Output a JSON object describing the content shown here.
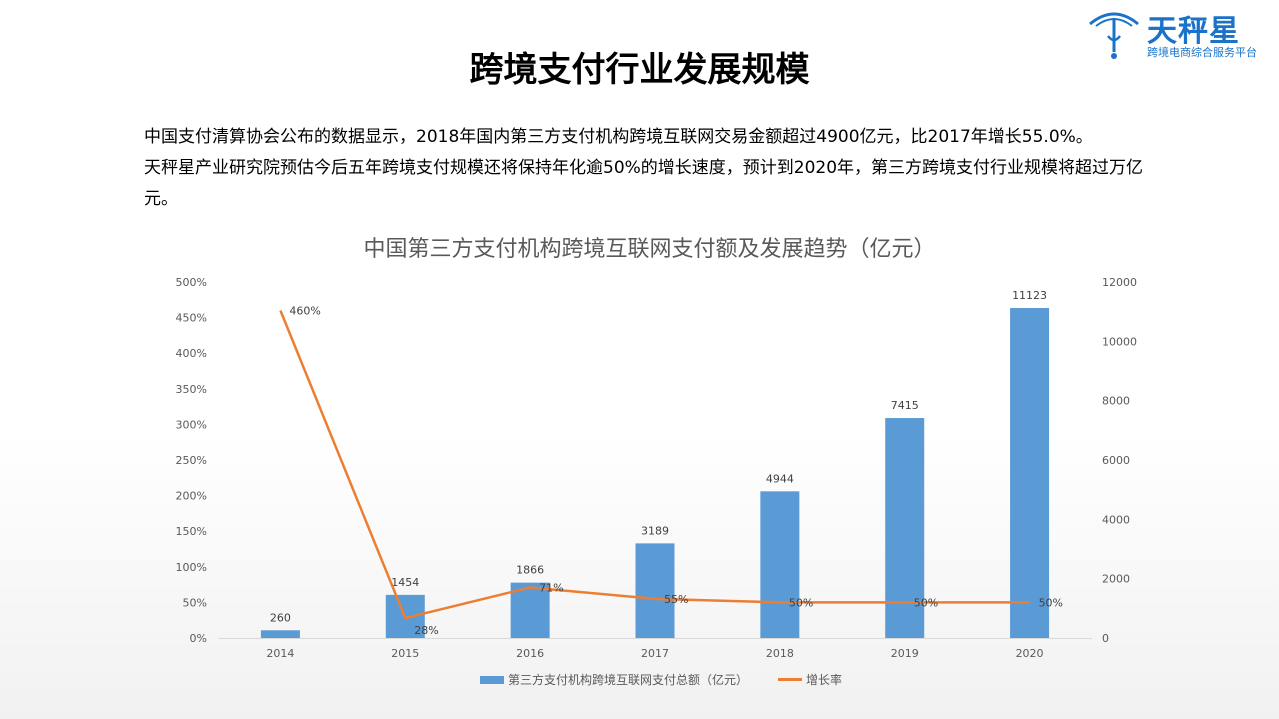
{
  "brand": {
    "name": "天秤星",
    "tagline": "跨境电商综合服务平台",
    "color": "#1a73c8"
  },
  "page_title": "跨境支付行业发展规模",
  "intro": [
    "中国支付清算协会公布的数据显示，2018年国内第三方支付机构跨境互联网交易金额超过4900亿元，比2017年增长55.0%。",
    "天秤星产业研究院预估今后五年跨境支付规模还将保持年化逾50%的增长速度，预计到2020年，第三方跨境支付行业规模将超过万亿元。"
  ],
  "chart_data": {
    "type": "bar",
    "title": "中国第三方支付机构跨境互联网支付额及发展趋势（亿元）",
    "categories": [
      "2014",
      "2015",
      "2016",
      "2017",
      "2018",
      "2019",
      "2020"
    ],
    "series": [
      {
        "name": "第三方支付机构跨境互联网支付总额（亿元）",
        "kind": "bar",
        "axis": "right",
        "color": "#5b9bd5",
        "values": [
          260,
          1454,
          1866,
          3189,
          4944,
          7415,
          11123
        ],
        "labels": [
          "260",
          "1454",
          "1866",
          "3189",
          "4944",
          "7415",
          "11123"
        ]
      },
      {
        "name": "增长率",
        "kind": "line",
        "axis": "left",
        "color": "#ed7d31",
        "values": [
          460,
          28,
          71,
          55,
          50,
          50,
          50
        ],
        "labels": [
          "460%",
          "28%",
          "71%",
          "55%",
          "50%",
          "50%",
          "50%"
        ]
      }
    ],
    "left_axis": {
      "ylim": [
        0,
        500
      ],
      "ticks": [
        "0%",
        "50%",
        "100%",
        "150%",
        "200%",
        "250%",
        "300%",
        "350%",
        "400%",
        "450%",
        "500%"
      ]
    },
    "right_axis": {
      "ylim": [
        0,
        12000
      ],
      "ticks": [
        "0",
        "2000",
        "4000",
        "6000",
        "8000",
        "10000",
        "12000"
      ]
    },
    "grid": false,
    "legend_position": "bottom"
  }
}
